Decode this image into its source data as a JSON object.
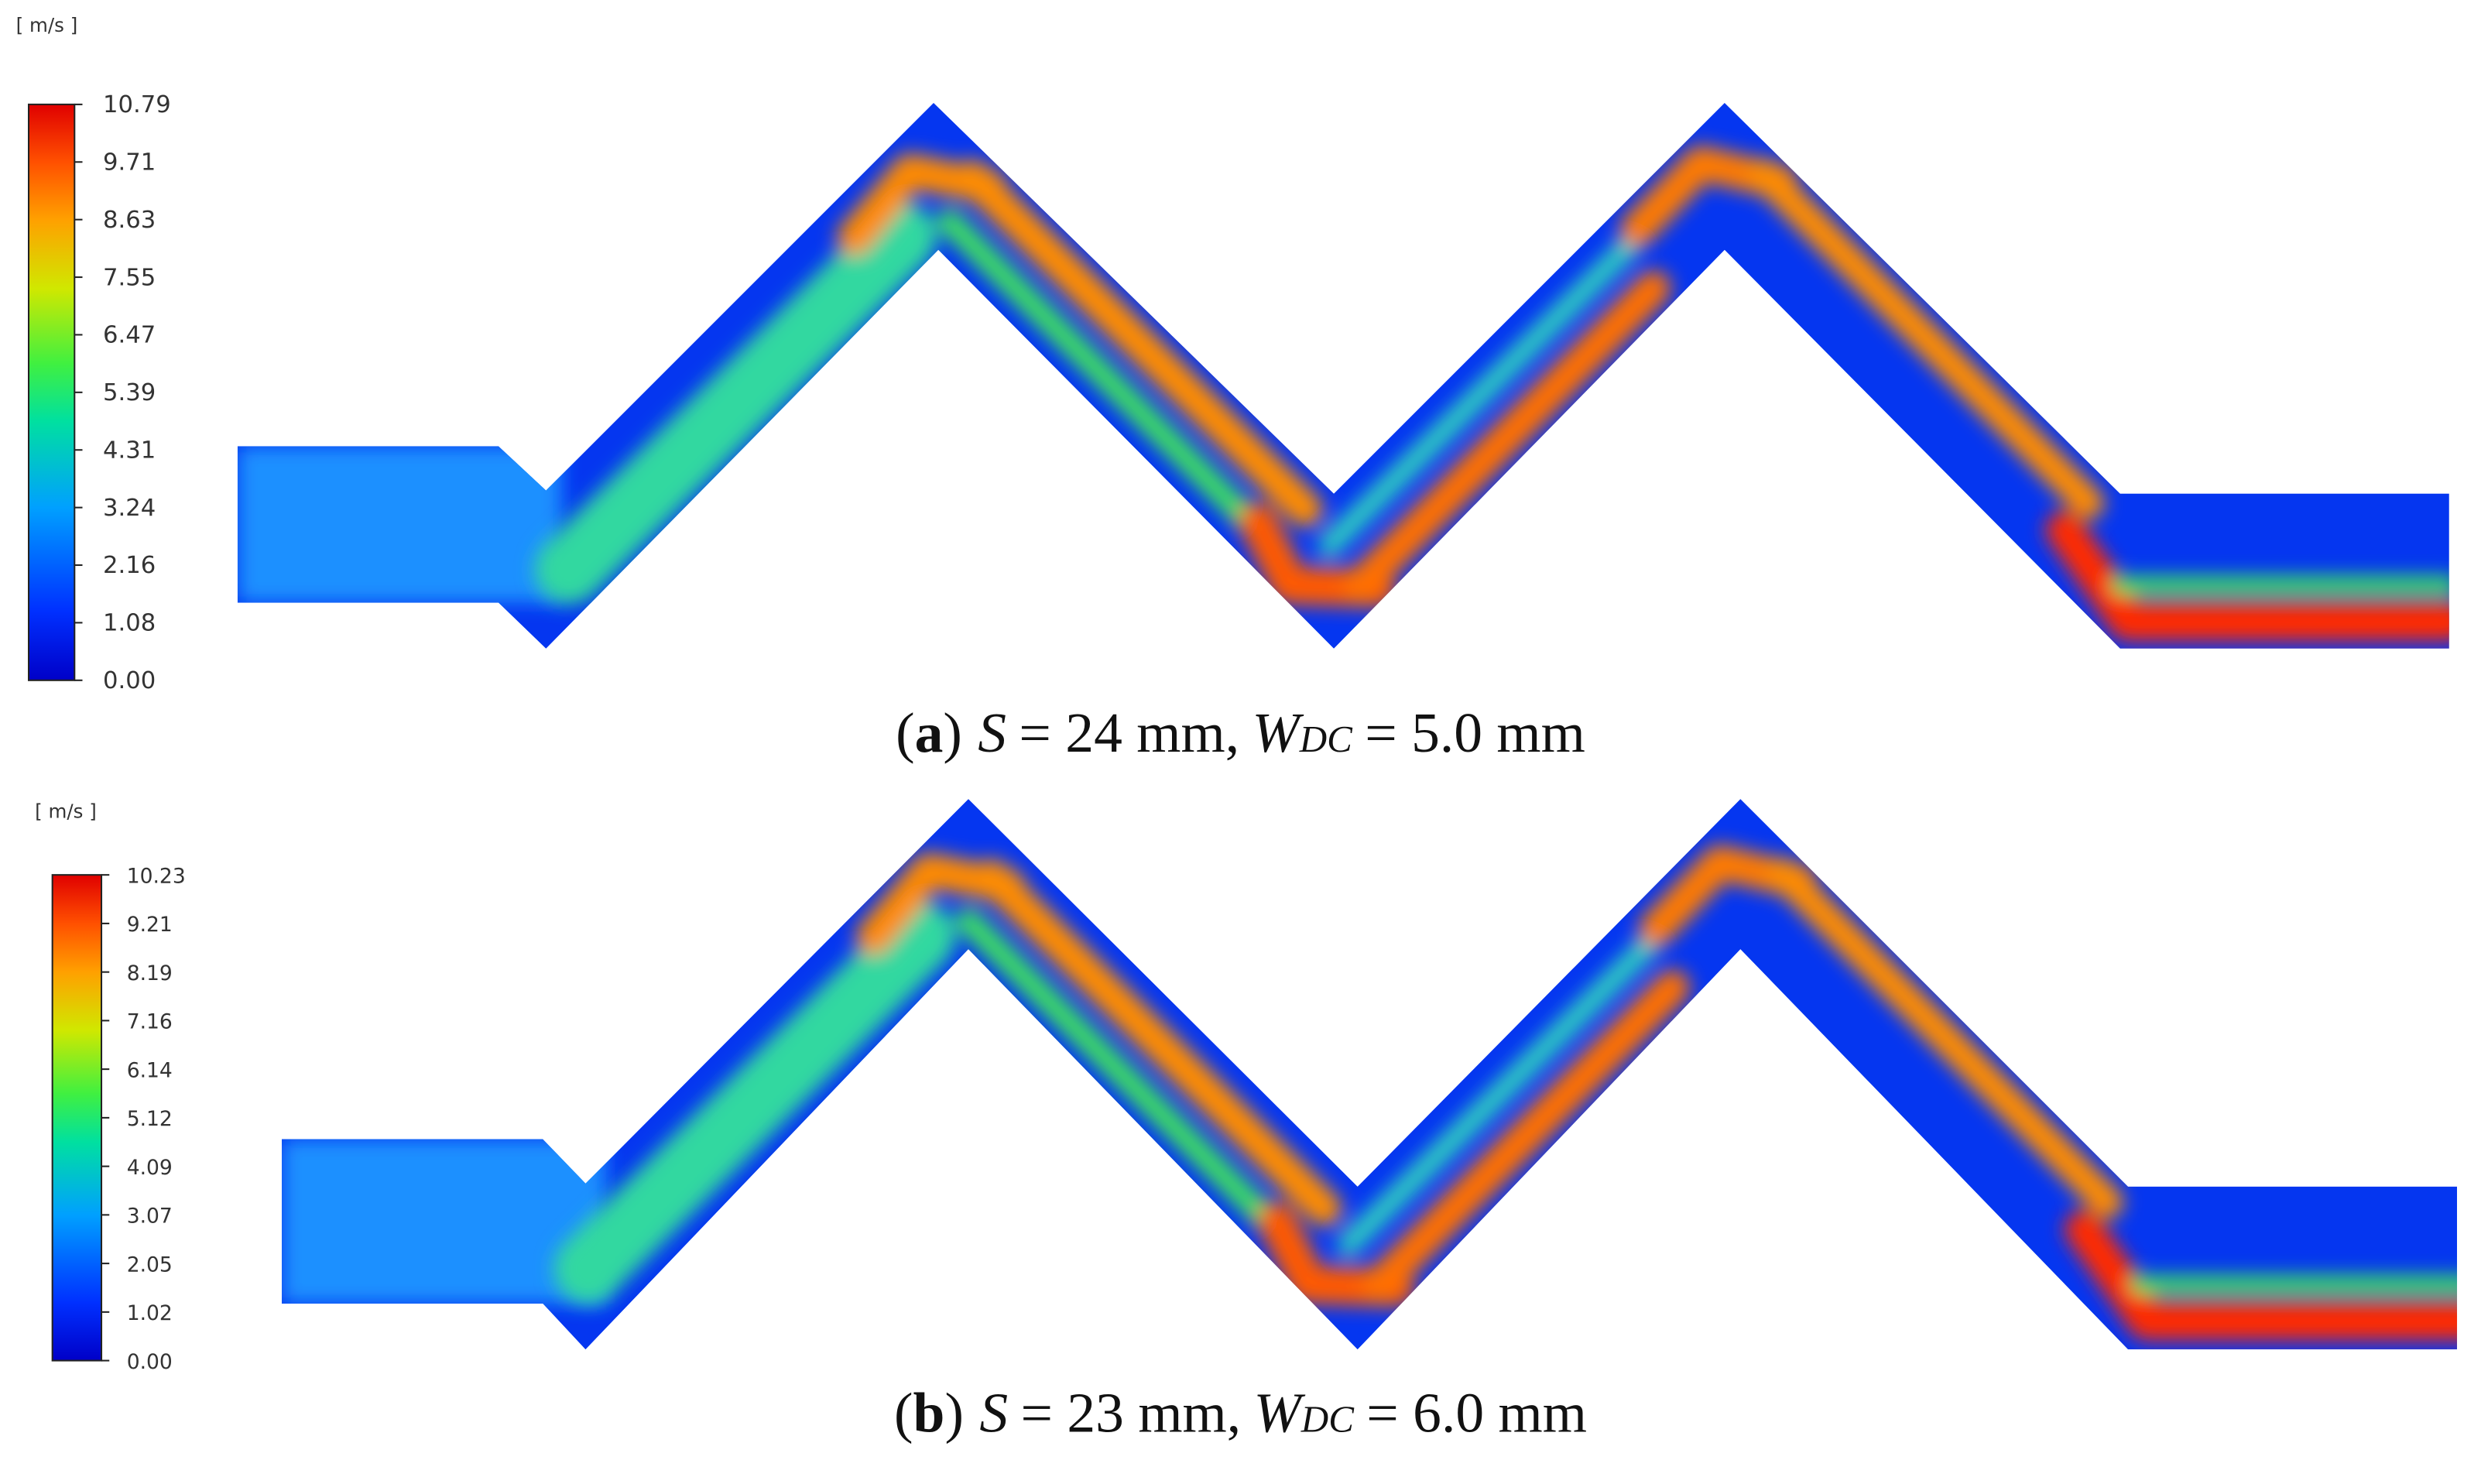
{
  "panels": [
    {
      "unit": "[ m/s ]",
      "colorbar_labels": [
        "10.79",
        "9.71",
        "8.63",
        "7.55",
        "6.47",
        "5.39",
        "4.31",
        "3.24",
        "2.16",
        "1.08",
        "0.00"
      ],
      "caption": [
        "(",
        "a",
        ")",
        "S",
        "= 24 mm,",
        "W",
        "DC",
        "= 5.0 mm"
      ]
    },
    {
      "unit": "[ m/s ]",
      "colorbar_labels": [
        "10.23",
        "9.21",
        "8.19",
        "7.16",
        "6.14",
        "5.12",
        "4.09",
        "3.07",
        "2.05",
        "1.02",
        "0.00"
      ],
      "caption": [
        "(",
        "b",
        ")",
        "S",
        "= 23 mm,",
        "W",
        "DC",
        "= 6.0 mm"
      ]
    }
  ]
}
